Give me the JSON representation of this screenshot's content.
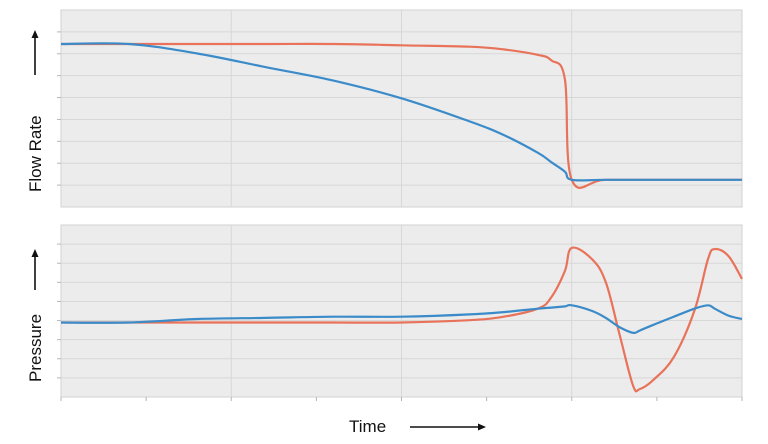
{
  "chart_data": [
    {
      "type": "line",
      "panel": "top",
      "title": "",
      "xlabel": "",
      "ylabel": "Flow Rate",
      "y_arrow": "up",
      "grid": true,
      "legend": "none",
      "x": [
        0.0,
        0.1,
        0.2,
        0.3,
        0.4,
        0.5,
        0.6,
        0.65,
        0.7,
        0.72,
        0.74,
        0.75,
        0.8,
        0.9,
        1.0
      ],
      "series": [
        {
          "values": [
            1.0,
            1.0,
            1.0,
            1.0,
            1.0,
            0.99,
            0.98,
            0.96,
            0.92,
            0.88,
            0.74,
            0.0,
            0.0,
            0.0,
            0.0
          ],
          "color": "#E8735A"
        },
        {
          "values": [
            1.0,
            1.0,
            0.93,
            0.83,
            0.73,
            0.6,
            0.43,
            0.33,
            0.2,
            0.13,
            0.06,
            0.0,
            0.0,
            0.0,
            0.0
          ],
          "color": "#3B8BC9"
        }
      ],
      "ylim": [
        -0.2,
        1.25
      ],
      "xlim": [
        0,
        1
      ]
    },
    {
      "type": "line",
      "panel": "bottom",
      "title": "",
      "xlabel": "Time",
      "x_arrow": "right",
      "ylabel": "Pressure",
      "y_arrow": "up",
      "grid": true,
      "legend": "none",
      "x": [
        0.0,
        0.1,
        0.2,
        0.3,
        0.4,
        0.5,
        0.6,
        0.65,
        0.7,
        0.72,
        0.74,
        0.75,
        0.78,
        0.8,
        0.82,
        0.84,
        0.85,
        0.87,
        0.9,
        0.93,
        0.95,
        0.96,
        0.98,
        1.0
      ],
      "series": [
        {
          "values": [
            0.0,
            0.0,
            0.0,
            0.0,
            0.0,
            0.0,
            0.02,
            0.05,
            0.12,
            0.22,
            0.45,
            0.65,
            0.55,
            0.35,
            -0.1,
            -0.55,
            -0.58,
            -0.5,
            -0.3,
            0.1,
            0.55,
            0.64,
            0.58,
            0.38
          ],
          "color": "#E8735A"
        },
        {
          "values": [
            0.0,
            0.0,
            0.03,
            0.04,
            0.05,
            0.05,
            0.07,
            0.09,
            0.12,
            0.13,
            0.14,
            0.15,
            0.1,
            0.04,
            -0.04,
            -0.09,
            -0.07,
            -0.02,
            0.05,
            0.12,
            0.15,
            0.12,
            0.06,
            0.03
          ],
          "color": "#3B8BC9"
        }
      ],
      "ylim": [
        -0.65,
        0.85
      ],
      "xlim": [
        0,
        1
      ]
    }
  ]
}
